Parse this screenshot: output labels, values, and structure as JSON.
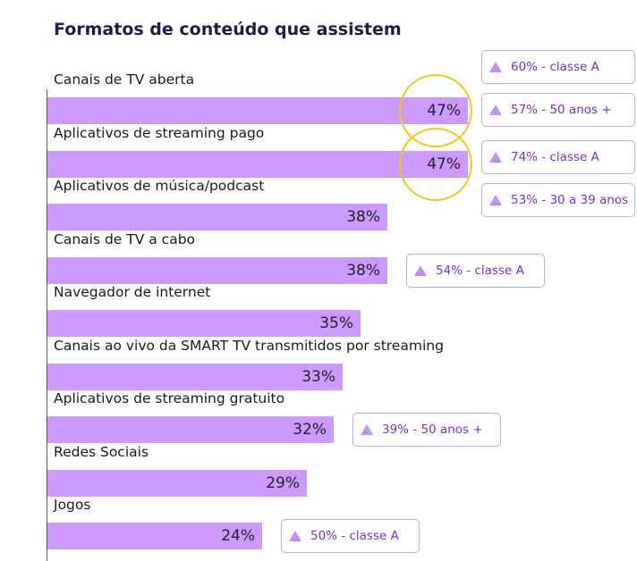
{
  "chart_data": {
    "type": "bar",
    "orientation": "horizontal",
    "title": "Formatos de conteúdo que assistem",
    "categories": [
      "Canais de TV aberta",
      "Aplicativos de streaming pago",
      "Aplicativos de música/podcast",
      "Canais de TV a cabo",
      "Navegador de internet",
      "Canais ao vivo da SMART TV transmitidos por streaming",
      "Aplicativos de streaming gratuito",
      "Redes Sociais",
      "Jogos"
    ],
    "values": [
      47,
      47,
      38,
      38,
      35,
      33,
      32,
      29,
      24
    ],
    "value_labels": [
      "47%",
      "47%",
      "38%",
      "38%",
      "35%",
      "33%",
      "32%",
      "29%",
      "24%"
    ],
    "highlighted": [
      0,
      1
    ],
    "xlim": [
      0,
      100
    ],
    "annotations": [
      {
        "category": 0,
        "texts": [
          "60% - classe A",
          "57% - 50 anos +"
        ]
      },
      {
        "category": 1,
        "texts": [
          "74% - classe A",
          "53% - 30 a 39 anos"
        ]
      },
      {
        "category": 3,
        "texts": [
          "54% - classe A"
        ]
      },
      {
        "category": 6,
        "texts": [
          "39% - 50 anos +"
        ]
      },
      {
        "category": 8,
        "texts": [
          "50% - classe A"
        ]
      }
    ],
    "colors": {
      "bar": "#cc99ff",
      "highlight_ring": "#f5c518",
      "badge_text": "#7a2fbf",
      "badge_icon": "#c48df7",
      "title": "#1f1b4d"
    },
    "badge_icon": "triangle-up-icon"
  }
}
